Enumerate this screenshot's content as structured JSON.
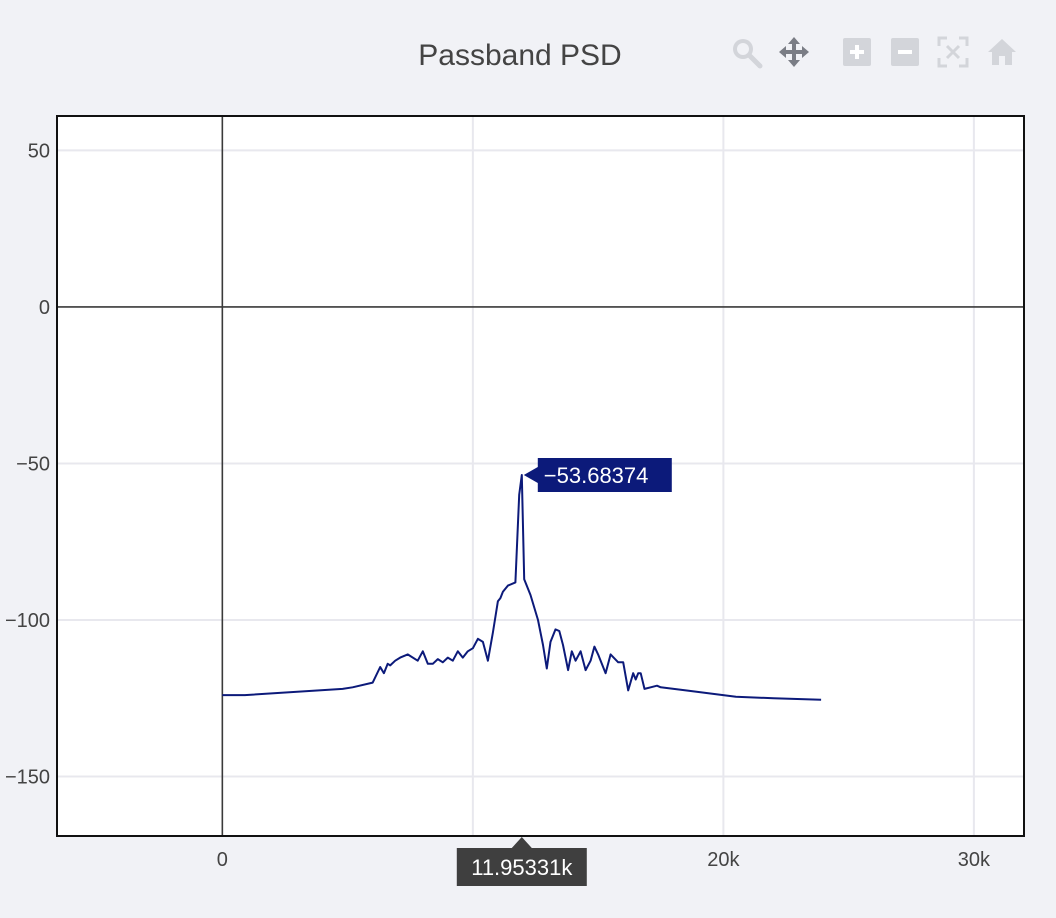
{
  "chart_data": {
    "type": "line",
    "title": "Passband PSD",
    "xlabel": "",
    "ylabel": "",
    "xlim": [
      -6600,
      32000
    ],
    "ylim": [
      -169,
      61
    ],
    "x_ticks": [
      0,
      10000,
      20000,
      30000
    ],
    "x_tick_labels": [
      "0",
      "",
      "20k",
      "30k"
    ],
    "y_ticks": [
      50,
      0,
      -50,
      -100,
      -150
    ],
    "y_tick_labels": [
      "50",
      "0",
      "−50",
      "−100",
      "−150"
    ],
    "grid": true,
    "legend": "none",
    "series": [
      {
        "color": "#0c1a7a",
        "x": [
          0,
          900,
          4800,
          5200,
          6000,
          6300,
          6450,
          6600,
          6700,
          6900,
          7100,
          7400,
          7800,
          8000,
          8200,
          8400,
          8600,
          8800,
          9000,
          9200,
          9400,
          9600,
          9800,
          10000,
          10200,
          10400,
          10600,
          10800,
          11000,
          11100,
          11200,
          11400,
          11700,
          11850,
          11953,
          12050,
          12300,
          12600,
          12800,
          12950,
          13100,
          13300,
          13450,
          13600,
          13800,
          13950,
          14100,
          14300,
          14500,
          14700,
          14850,
          15000,
          15300,
          15500,
          15800,
          16000,
          16200,
          16400,
          16500,
          16600,
          16700,
          16850,
          17100,
          17350,
          17500,
          18500,
          20500,
          22000,
          23900
        ],
        "y": [
          -124,
          -124,
          -122,
          -121.5,
          -120,
          -115,
          -117,
          -114,
          -114.5,
          -113,
          -112,
          -111,
          -113,
          -110,
          -114,
          -114,
          -112.5,
          -113.5,
          -112,
          -113,
          -110,
          -112,
          -110,
          -109,
          -106,
          -107,
          -113,
          -104,
          -94,
          -93,
          -91,
          -89,
          -88,
          -60,
          -53.68374,
          -87,
          -92,
          -100,
          -108,
          -115.5,
          -107,
          -103,
          -103.5,
          -108,
          -116,
          -110,
          -113,
          -110,
          -116,
          -113,
          -108.5,
          -111,
          -117,
          -111,
          -113.5,
          -113.5,
          -122.5,
          -117,
          -119,
          -117,
          -117,
          -122,
          -121.5,
          -121,
          -121.5,
          -122.5,
          -124.5,
          -125,
          -125.5
        ]
      }
    ],
    "hover": {
      "x_label": "11.95331k",
      "y_label": "−53.68374",
      "x": 11953.31,
      "y": -53.68374
    }
  },
  "modebar": {
    "icons": [
      "zoom-icon",
      "pan-icon",
      "zoom-in-icon",
      "zoom-out-icon",
      "autoscale-icon",
      "reset-axes-icon"
    ]
  }
}
